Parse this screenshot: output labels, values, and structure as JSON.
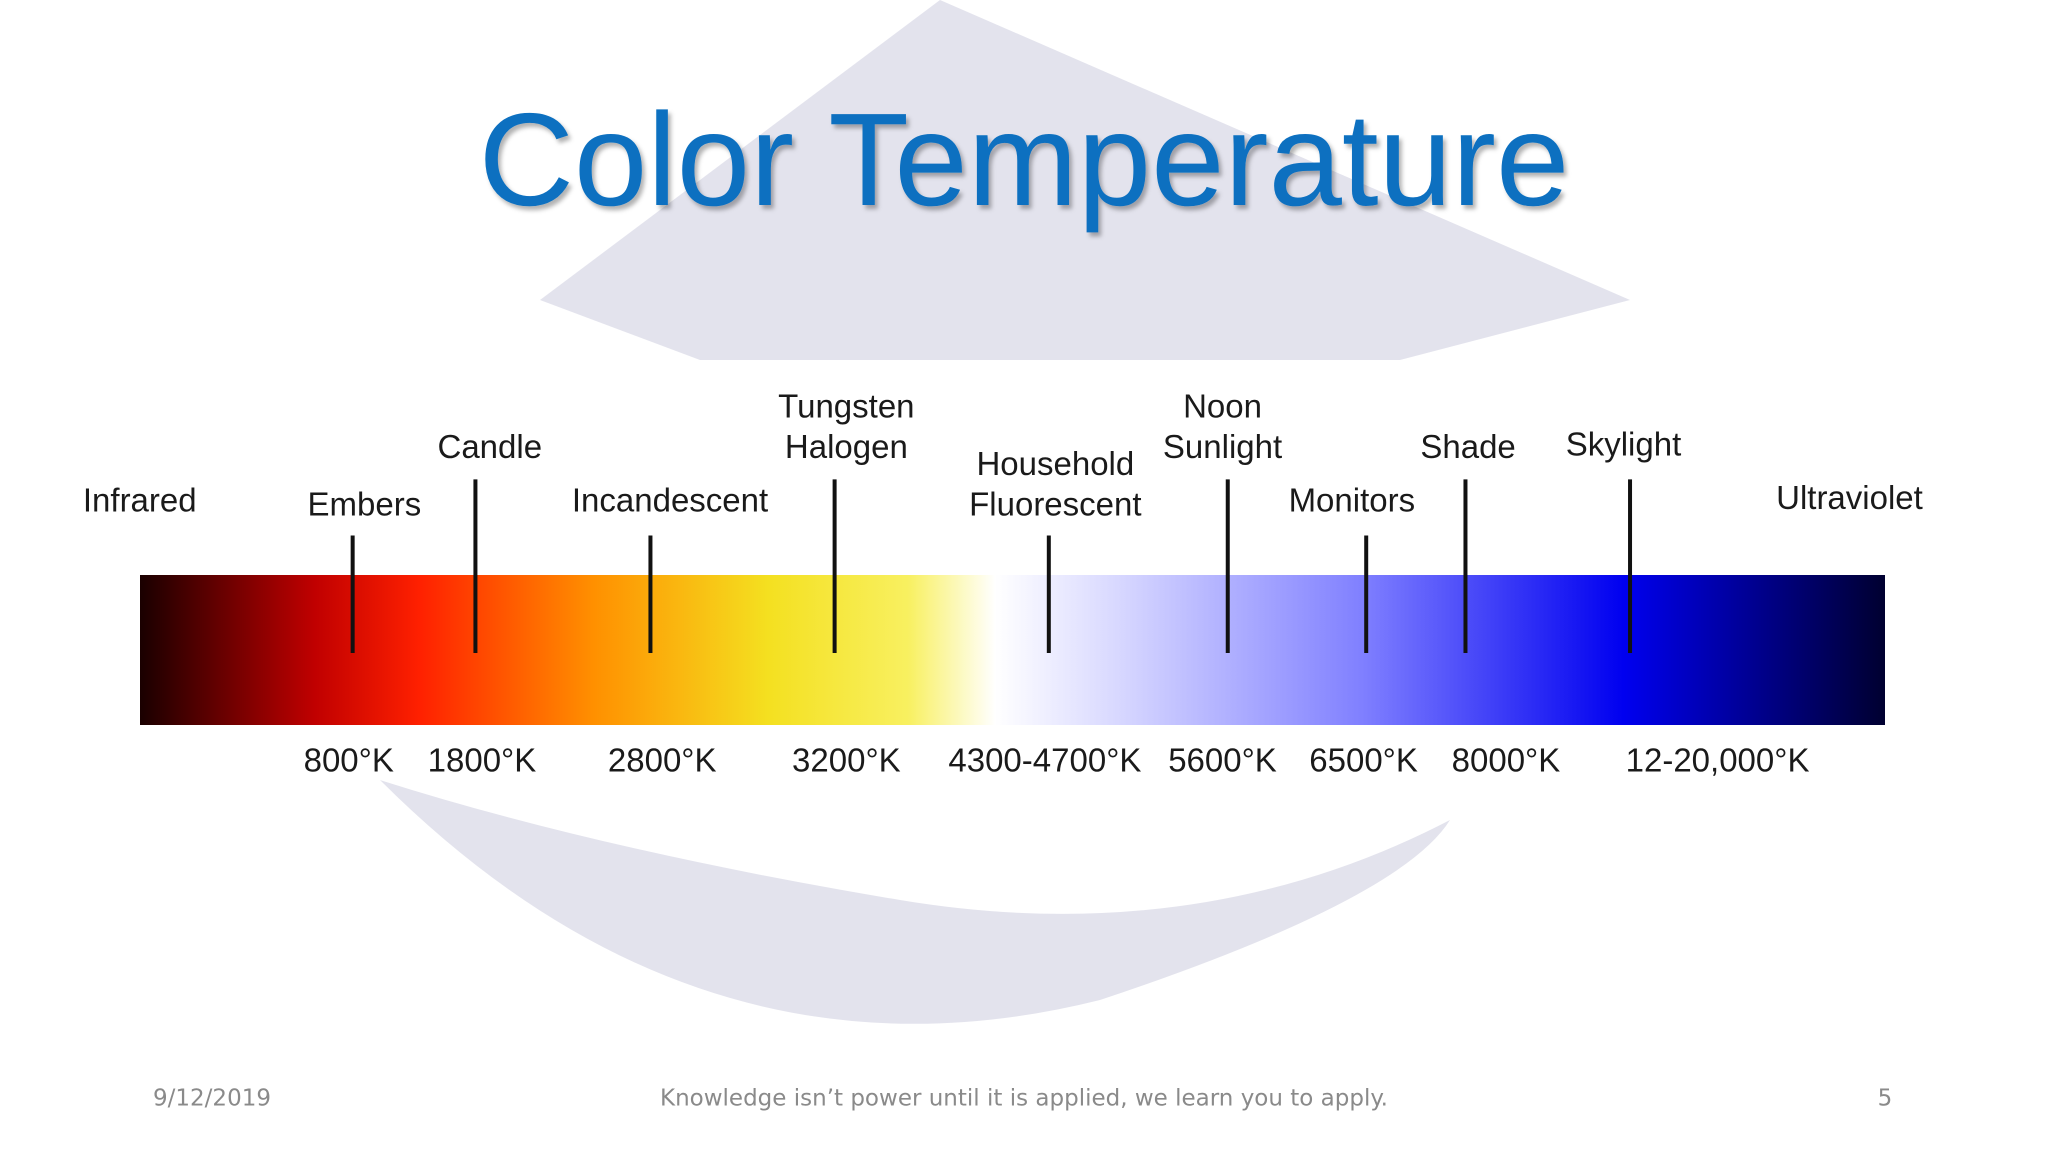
{
  "title": "Color Temperature",
  "labels": [
    {
      "lines": [
        "Infrared"
      ]
    },
    {
      "lines": [
        "Embers"
      ]
    },
    {
      "lines": [
        "Candle"
      ]
    },
    {
      "lines": [
        "Incandescent"
      ]
    },
    {
      "lines": [
        "Tungsten",
        "Halogen"
      ]
    },
    {
      "lines": [
        "Household",
        "Fluorescent"
      ]
    },
    {
      "lines": [
        "Noon",
        "Sunlight"
      ]
    },
    {
      "lines": [
        "Monitors"
      ]
    },
    {
      "lines": [
        "Shade"
      ]
    },
    {
      "lines": [
        "Skylight"
      ]
    },
    {
      "lines": [
        "Ultraviolet"
      ]
    }
  ],
  "temperatures": [
    "800°K",
    "1800°K",
    "2800°K",
    "3200°K",
    "4300-4700°K",
    "5600°K",
    "6500°K",
    "8000°K",
    "12-20,000°K"
  ],
  "footer": {
    "date": "9/12/2019",
    "tagline": "Knowledge isn’t power until it is applied, we learn you to apply.",
    "page": "5"
  }
}
